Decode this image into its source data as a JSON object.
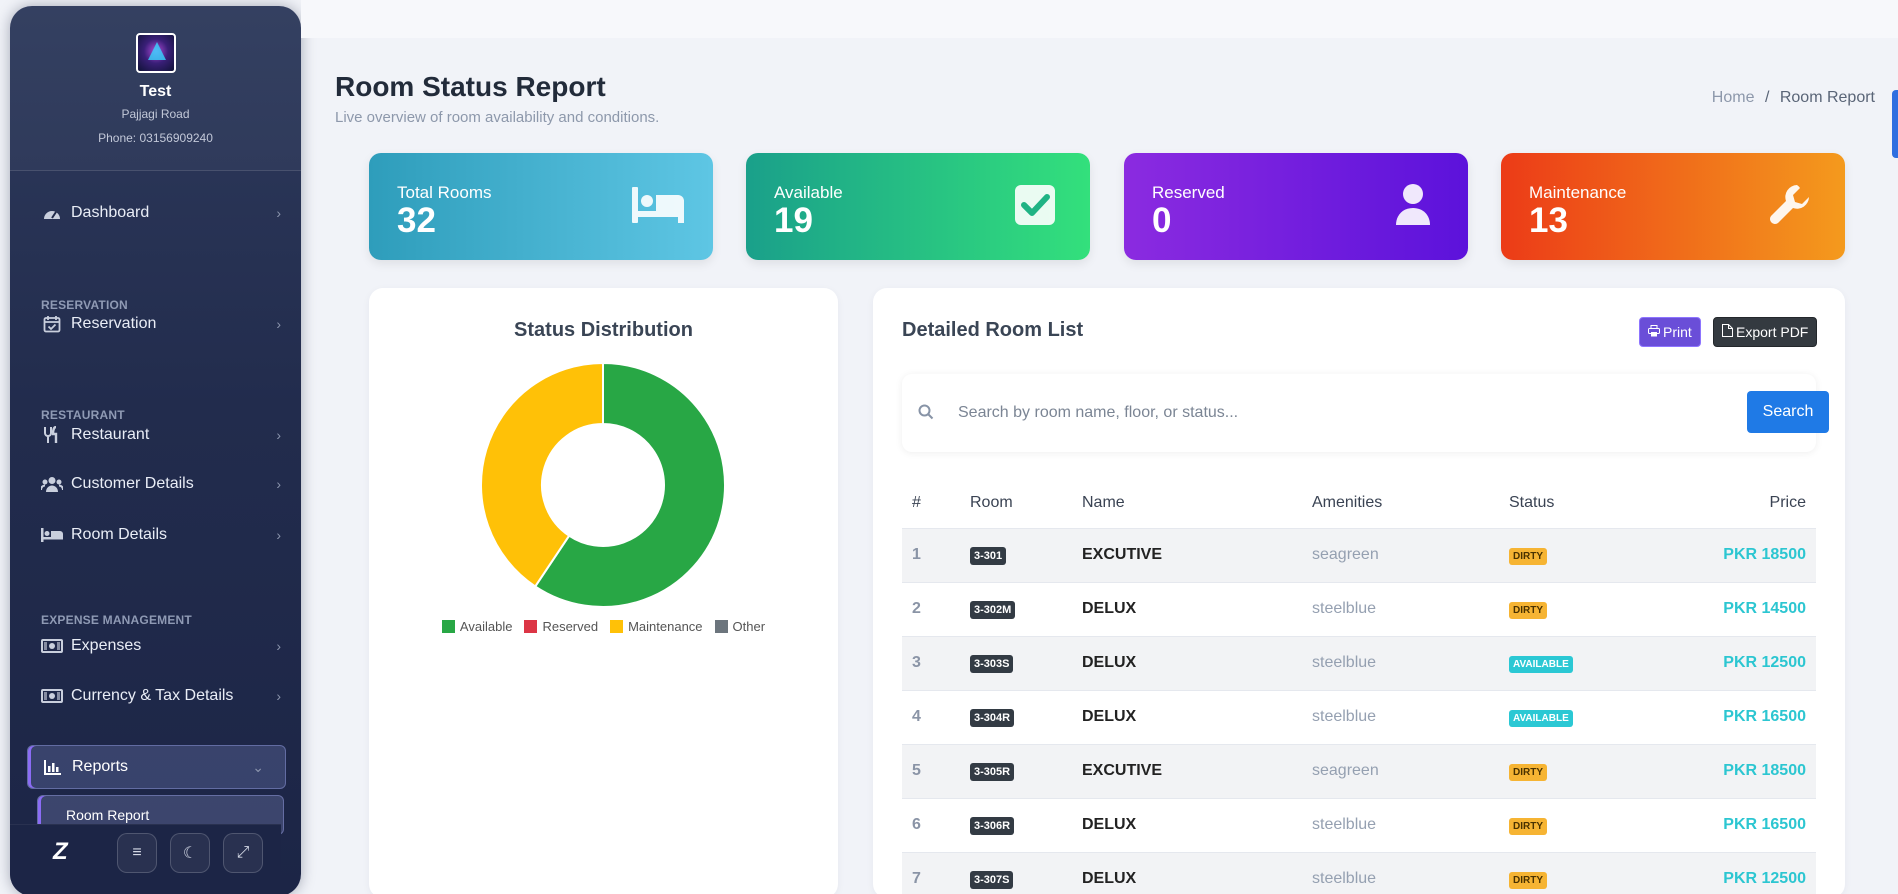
{
  "sidebar": {
    "profile": {
      "name": "Test",
      "address": "Pajjagi Road",
      "phone": "Phone: 03156909240"
    },
    "nav": [
      {
        "type": "item",
        "label": "Dashboard",
        "icon": "gauge-icon"
      },
      {
        "type": "section",
        "label": "RESERVATION"
      },
      {
        "type": "item",
        "label": "Reservation",
        "icon": "calendar-check-icon"
      },
      {
        "type": "section",
        "label": "RESTAURANT"
      },
      {
        "type": "item",
        "label": "Restaurant",
        "icon": "utensils-icon"
      },
      {
        "type": "item",
        "label": "Customer Details",
        "icon": "users-icon"
      },
      {
        "type": "item",
        "label": "Room Details",
        "icon": "bed-icon"
      },
      {
        "type": "section",
        "label": "EXPENSE MANAGEMENT"
      },
      {
        "type": "item",
        "label": "Expenses",
        "icon": "money-bill-icon"
      },
      {
        "type": "item",
        "label": "Currency & Tax Details",
        "icon": "money-bill-icon"
      }
    ],
    "active_item": {
      "label": "Reports",
      "icon": "chart-bar-icon"
    },
    "active_subitem": {
      "label": "Room Report"
    }
  },
  "header": {
    "title": "Room Status Report",
    "subtitle": "Live overview of room availability and conditions.",
    "breadcrumb": {
      "home": "Home",
      "separator": "/",
      "current": "Room Report"
    }
  },
  "stats": [
    {
      "label": "Total Rooms",
      "value": "32",
      "icon": "bed-icon"
    },
    {
      "label": "Available",
      "value": "19",
      "icon": "check-square-icon"
    },
    {
      "label": "Reserved",
      "value": "0",
      "icon": "user-icon"
    },
    {
      "label": "Maintenance",
      "value": "13",
      "icon": "wrench-icon"
    }
  ],
  "chart_panel": {
    "title": "Status Distribution"
  },
  "chart_data": {
    "type": "pie",
    "title": "Status Distribution",
    "categories": [
      "Available",
      "Reserved",
      "Maintenance",
      "Other"
    ],
    "values": [
      19,
      0,
      13,
      0
    ],
    "colors": [
      "#28a745",
      "#dc3545",
      "#ffc107",
      "#6c757d"
    ],
    "legend": "bottom",
    "donut": true
  },
  "list_panel": {
    "title": "Detailed Room List",
    "print_label": "Print",
    "export_label": "Export PDF",
    "search_placeholder": "Search by room name, floor, or status...",
    "search_button": "Search",
    "columns": [
      "#",
      "Room",
      "Name",
      "Amenities",
      "Status",
      "Price"
    ],
    "rows": [
      {
        "idx": "1",
        "room": "3-301",
        "name": "EXCUTIVE",
        "amenities": "seagreen",
        "status": "DIRTY",
        "price": "PKR 18500"
      },
      {
        "idx": "2",
        "room": "3-302M",
        "name": "DELUX",
        "amenities": "steelblue",
        "status": "DIRTY",
        "price": "PKR 14500"
      },
      {
        "idx": "3",
        "room": "3-303S",
        "name": "DELUX",
        "amenities": "steelblue",
        "status": "AVAILABLE",
        "price": "PKR 12500"
      },
      {
        "idx": "4",
        "room": "3-304R",
        "name": "DELUX",
        "amenities": "steelblue",
        "status": "AVAILABLE",
        "price": "PKR 16500"
      },
      {
        "idx": "5",
        "room": "3-305R",
        "name": "EXCUTIVE",
        "amenities": "seagreen",
        "status": "DIRTY",
        "price": "PKR 18500"
      },
      {
        "idx": "6",
        "room": "3-306R",
        "name": "DELUX",
        "amenities": "steelblue",
        "status": "DIRTY",
        "price": "PKR 16500"
      },
      {
        "idx": "7",
        "room": "3-307S",
        "name": "DELUX",
        "amenities": "steelblue",
        "status": "DIRTY",
        "price": "PKR 12500"
      }
    ]
  },
  "colors": {
    "print_btn": "#6a4ed8",
    "search_btn": "#1f7ae6",
    "price": "#2cc6d1",
    "dirty": "#f6b433",
    "available": "#2bc8d4"
  }
}
